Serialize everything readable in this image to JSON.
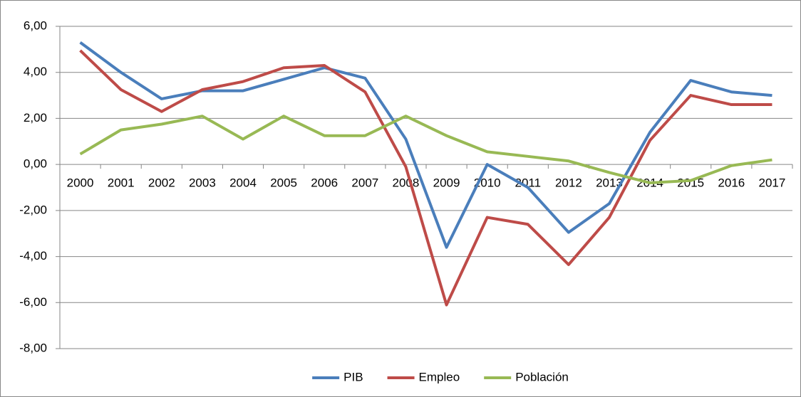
{
  "chart_data": {
    "type": "line",
    "categories": [
      "2000",
      "2001",
      "2002",
      "2003",
      "2004",
      "2005",
      "2006",
      "2007",
      "2008",
      "2009",
      "2010",
      "2011",
      "2012",
      "2013",
      "2014",
      "2015",
      "2016",
      "2017"
    ],
    "series": [
      {
        "name": "PIB",
        "color": "#4a7ebb",
        "values": [
          5.3,
          4.0,
          2.85,
          3.2,
          3.2,
          3.7,
          4.2,
          3.75,
          1.1,
          -3.6,
          0.0,
          -1.0,
          -2.95,
          -1.7,
          1.4,
          3.65,
          3.15,
          3.0
        ]
      },
      {
        "name": "Empleo",
        "color": "#be4b48",
        "values": [
          4.95,
          3.25,
          2.3,
          3.25,
          3.6,
          4.2,
          4.3,
          3.15,
          -0.1,
          -6.1,
          -2.3,
          -2.6,
          -4.35,
          -2.3,
          1.05,
          3.0,
          2.6,
          2.6
        ]
      },
      {
        "name": "Población",
        "color": "#98b954",
        "values": [
          0.45,
          1.5,
          1.75,
          2.1,
          1.1,
          2.1,
          1.25,
          1.25,
          2.1,
          1.25,
          0.55,
          0.35,
          0.15,
          -0.35,
          -0.8,
          -0.7,
          -0.05,
          0.2
        ]
      }
    ],
    "ylim": [
      -8,
      6
    ],
    "yticks": [
      {
        "value": -8,
        "label": "-8,00"
      },
      {
        "value": -6,
        "label": "-6,00"
      },
      {
        "value": -4,
        "label": "-4,00"
      },
      {
        "value": -2,
        "label": "-2,00"
      },
      {
        "value": 0,
        "label": "0,00"
      },
      {
        "value": 2,
        "label": "2,00"
      },
      {
        "value": 4,
        "label": "4,00"
      },
      {
        "value": 6,
        "label": "6,00"
      }
    ],
    "grid": true,
    "legend": "bottom"
  }
}
